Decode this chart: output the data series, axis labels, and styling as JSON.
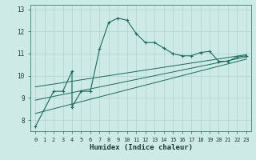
{
  "title": "",
  "xlabel": "Humidex (Indice chaleur)",
  "bg_color": "#ceeae7",
  "grid_color": "#afd4d0",
  "line_color": "#1a6b5a",
  "xlim": [
    -0.5,
    23.5
  ],
  "ylim": [
    7.5,
    13.2
  ],
  "yticks": [
    8,
    9,
    10,
    11,
    12,
    13
  ],
  "xticks": [
    0,
    1,
    2,
    3,
    4,
    5,
    6,
    7,
    8,
    9,
    10,
    11,
    12,
    13,
    14,
    15,
    16,
    17,
    18,
    19,
    20,
    21,
    22,
    23
  ],
  "line1_x": [
    0,
    2,
    3,
    4,
    4,
    5,
    6,
    7,
    8,
    9,
    10,
    11,
    12,
    13,
    14,
    15,
    16,
    17,
    18,
    19,
    20,
    21,
    22,
    23
  ],
  "line1_y": [
    7.7,
    9.3,
    9.3,
    10.2,
    8.6,
    9.3,
    9.3,
    11.2,
    12.4,
    12.6,
    12.5,
    11.9,
    11.5,
    11.5,
    11.25,
    11.0,
    10.9,
    10.9,
    11.05,
    11.1,
    10.65,
    10.65,
    10.85,
    10.9
  ],
  "line2_y0": 8.3,
  "line2_y1": 10.75,
  "line3_y0": 8.9,
  "line3_y1": 10.85,
  "line4_y0": 9.5,
  "line4_y1": 10.95
}
